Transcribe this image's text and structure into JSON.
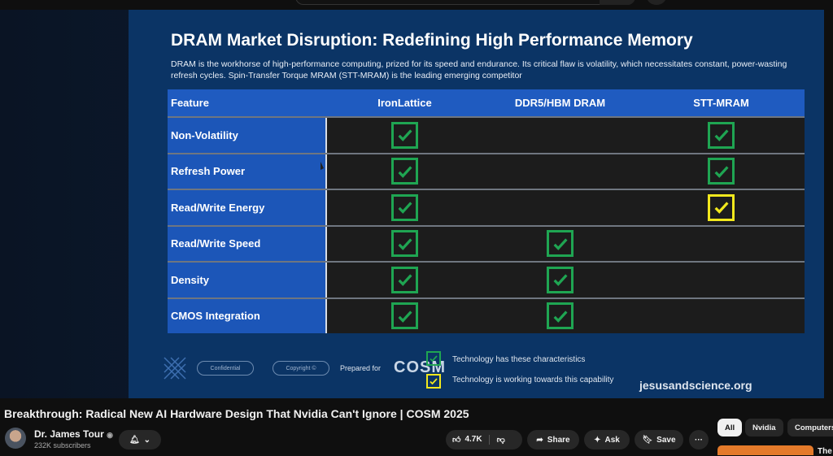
{
  "slide": {
    "title": "DRAM Market Disruption: Redefining High Performance Memory",
    "description": "DRAM is the workhorse of high-performance computing, prized for its speed and endurance. Its critical flaw is volatility, which necessitates constant, power-wasting refresh cycles. Spin-Transfer Torque MRAM (STT-MRAM) is the leading emerging competitor",
    "table": {
      "headers": [
        "Feature",
        "IronLattice",
        "DDR5/HBM DRAM",
        "STT-MRAM"
      ],
      "rows": [
        {
          "feature": "Non-Volatility",
          "values": [
            "green",
            "",
            "green"
          ]
        },
        {
          "feature": "Refresh Power",
          "values": [
            "green",
            "",
            "green"
          ]
        },
        {
          "feature": "Read/Write Energy",
          "values": [
            "green",
            "",
            "yellow"
          ]
        },
        {
          "feature": "Read/Write Speed",
          "values": [
            "green",
            "green",
            ""
          ]
        },
        {
          "feature": "Density",
          "values": [
            "green",
            "green",
            ""
          ]
        },
        {
          "feature": "CMOS Integration",
          "values": [
            "green",
            "green",
            ""
          ]
        }
      ]
    },
    "footer": {
      "confidential": "Confidential",
      "copyright": "Copyright ©",
      "prepared_for": "Prepared for",
      "logo": "COSM",
      "legend_green": "Technology has these characteristics",
      "legend_yellow": "Technology is working towards this capability",
      "website": "jesusandscience.org"
    },
    "colors": {
      "green": "#1fa552",
      "yellow": "#f2e81d",
      "slide_bg": "#0b3465",
      "header_bg": "#1f5bc0"
    }
  },
  "video": {
    "title": "Breakthrough: Radical New AI Hardware Design That Nvidia Can't Ignore | COSM 2025",
    "channel": "Dr. James Tour",
    "subscribers": "232K subscribers",
    "likes": "4.7K",
    "share": "Share",
    "ask": "Ask",
    "save": "Save"
  },
  "chips": [
    "All",
    "Nvidia",
    "Computers"
  ],
  "recommendation_title": "The"
}
